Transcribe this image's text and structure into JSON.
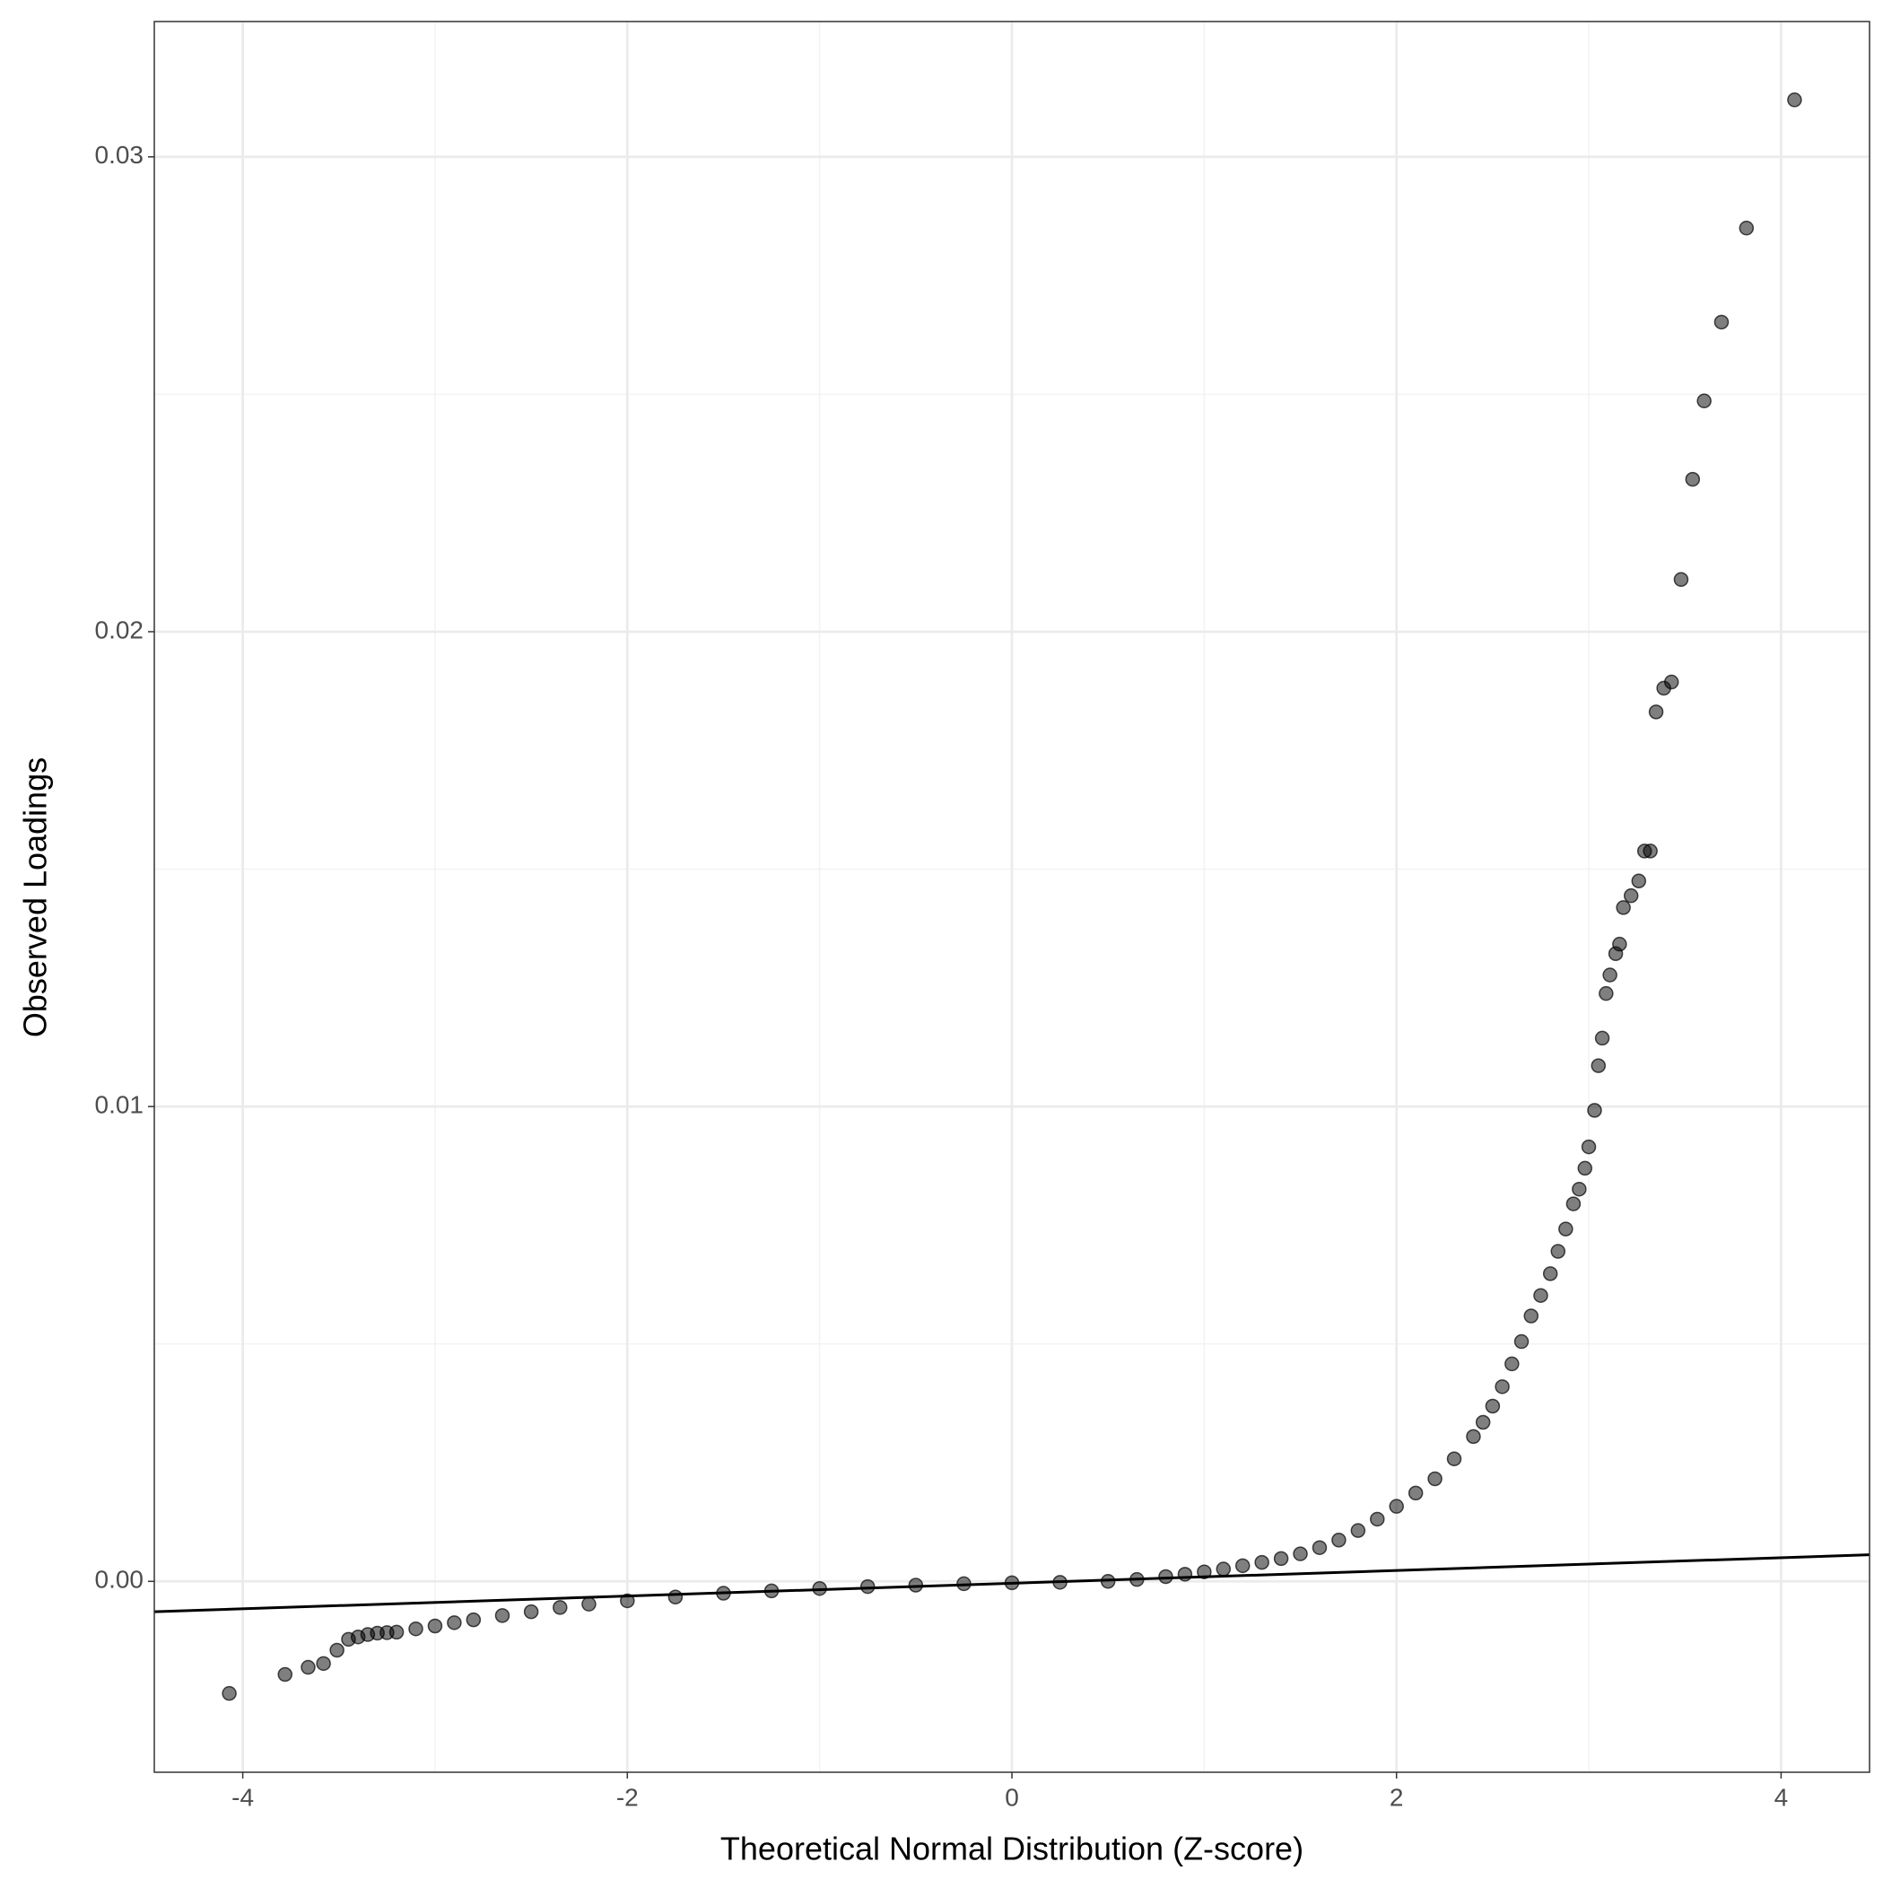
{
  "chart_data": {
    "type": "scatter",
    "x_label": "Theoretical Normal Distribution (Z-score)",
    "y_label": "Observed Loadings",
    "x": [
      -4.07,
      -3.78,
      -3.66,
      -3.58,
      -3.51,
      -3.45,
      -3.4,
      -3.35,
      -3.3,
      -3.25,
      -3.2,
      -3.1,
      -3.0,
      -2.9,
      -2.8,
      -2.65,
      -2.5,
      -2.35,
      -2.2,
      -2.0,
      -1.75,
      -1.5,
      -1.25,
      -1.0,
      -0.75,
      -0.5,
      -0.25,
      0,
      0.25,
      0.5,
      0.65,
      0.8,
      0.9,
      1.0,
      1.1,
      1.2,
      1.3,
      1.4,
      1.5,
      1.6,
      1.7,
      1.8,
      1.9,
      2.0,
      2.1,
      2.2,
      2.3,
      2.4,
      2.45,
      2.5,
      2.55,
      2.6,
      2.65,
      2.7,
      2.75,
      2.8,
      2.84,
      2.88,
      2.92,
      2.95,
      2.98,
      3.0,
      3.03,
      3.05,
      3.07,
      3.09,
      3.11,
      3.14,
      3.16,
      3.18,
      3.22,
      3.26,
      3.29,
      3.32,
      3.35,
      3.39,
      3.43,
      3.48,
      3.54,
      3.6,
      3.69,
      3.82,
      4.07
    ],
    "values": [
      -0.00236,
      -0.00196,
      -0.00181,
      -0.00173,
      -0.00145,
      -0.00122,
      -0.00117,
      -0.00112,
      -0.00109,
      -0.00108,
      -0.00107,
      -0.001,
      -0.00094,
      -0.00087,
      -0.00081,
      -0.00072,
      -0.00064,
      -0.00055,
      -0.00048,
      -0.00041,
      -0.00033,
      -0.00025,
      -0.0002,
      -0.00015,
      -0.00011,
      -8e-05,
      -5e-05,
      -3e-05,
      -2e-05,
      0,
      4e-05,
      0.0001,
      0.00015,
      0.0002,
      0.00026,
      0.00033,
      0.0004,
      0.00048,
      0.00058,
      0.00071,
      0.00087,
      0.00107,
      0.00131,
      0.00158,
      0.00186,
      0.00216,
      0.00258,
      0.00305,
      0.00335,
      0.00369,
      0.0041,
      0.00458,
      0.00505,
      0.00559,
      0.00602,
      0.00648,
      0.00695,
      0.00742,
      0.00795,
      0.00826,
      0.0087,
      0.00915,
      0.00992,
      0.01086,
      0.01144,
      0.01238,
      0.01277,
      0.01322,
      0.01342,
      0.01419,
      0.01444,
      0.01475,
      0.01538,
      0.01538,
      0.01831,
      0.01881,
      0.01894,
      0.0211,
      0.02321,
      0.02486,
      0.02652,
      0.0285,
      0.0312
    ],
    "color": "#000000",
    "reference_line": {
      "x": [
        -4.46,
        4.46
      ],
      "values": [
        -0.00064,
        0.00056
      ],
      "color": "#000000"
    },
    "xlim": [
      -4.46,
      4.46
    ],
    "xticks": [
      -4,
      -2,
      0,
      2,
      4
    ],
    "ylim": [
      -0.00402,
      0.03285
    ],
    "yticks": [
      {
        "value": 0,
        "label": "0.00"
      },
      0.01,
      0.02,
      0.03
    ],
    "grid": true,
    "minor_grid": true
  }
}
